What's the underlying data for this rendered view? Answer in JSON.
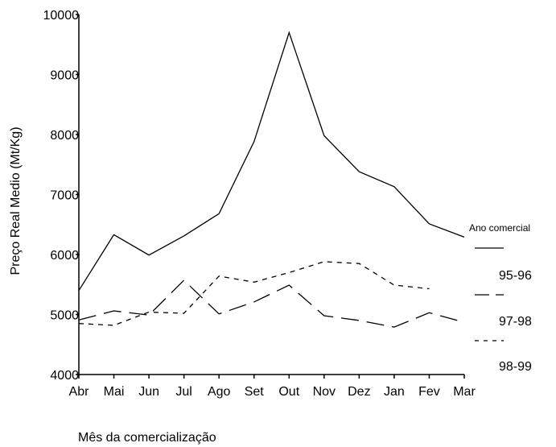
{
  "chart_data": {
    "type": "line",
    "categories": [
      "Abr",
      "Mai",
      "Jun",
      "Jul",
      "Ago",
      "Set",
      "Out",
      "Nov",
      "Dez",
      "Jan",
      "Fev",
      "Mar"
    ],
    "series": [
      {
        "name": "95-96",
        "line_style": "solid",
        "values": [
          5400,
          6330,
          5990,
          6310,
          6680,
          7880,
          9700,
          7980,
          7380,
          7130,
          6510,
          6290
        ]
      },
      {
        "name": "97-98",
        "line_style": "long-dash",
        "values": [
          4910,
          5060,
          4990,
          5570,
          5010,
          5210,
          5490,
          4980,
          4900,
          4790,
          5030,
          4870
        ]
      },
      {
        "name": "98-99",
        "line_style": "short-dash",
        "values": [
          4850,
          4820,
          5040,
          5020,
          5640,
          5540,
          5700,
          5880,
          5850,
          5490,
          5430,
          null
        ]
      }
    ],
    "title": "",
    "xlabel": "Mês da comercialização",
    "ylabel": "Preço Real Medio (Mt/Kg)",
    "yticks": [
      4000,
      5000,
      6000,
      7000,
      8000,
      9000,
      10000
    ],
    "ylim": [
      4000,
      10000
    ],
    "grid": false,
    "legend": {
      "title": "Ano comercial",
      "placement": "right"
    },
    "line_color": "#000000"
  }
}
